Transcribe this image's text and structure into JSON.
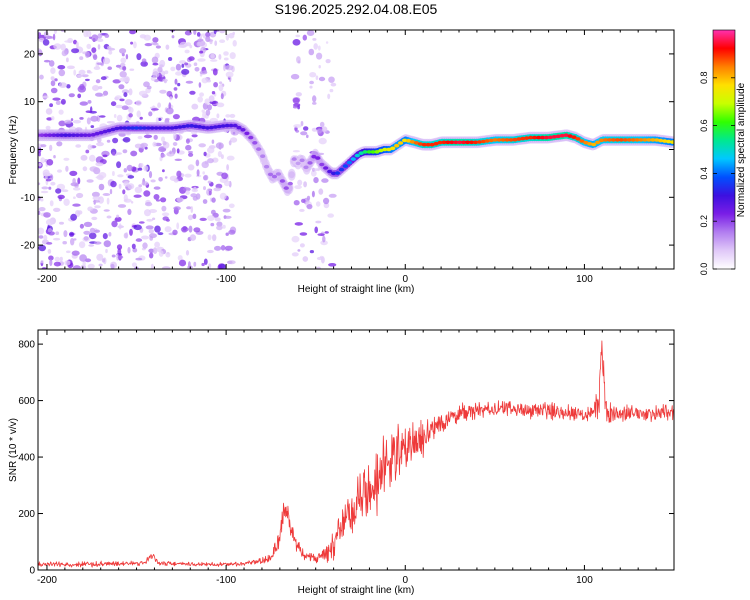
{
  "title": "S196.2025.292.04.08.E05",
  "chart_data": [
    {
      "type": "heatmap",
      "title": "S196.2025.292.04.08.E05",
      "xlabel": "Height of straight line (km)",
      "ylabel": "Frequency (Hz)",
      "xlim": [
        -205,
        150
      ],
      "ylim": [
        -25,
        25
      ],
      "xticks": [
        -200,
        -100,
        0,
        100
      ],
      "xticklabels": [
        "-200",
        "-100",
        "0",
        "100"
      ],
      "yticks": [
        -20,
        -10,
        0,
        10,
        20
      ],
      "yticklabels": [
        "-20",
        "-10",
        "0",
        "10",
        "20"
      ],
      "colorbar": {
        "label": "Normalized spectral amplitude",
        "range": [
          0,
          1
        ],
        "ticks": [
          0.0,
          0.2,
          0.4,
          0.6,
          0.8
        ],
        "ticklabels": [
          "0.0",
          "0.2",
          "0.4",
          "0.6",
          "0.8"
        ],
        "colormap": [
          "#ffffff",
          "#e0c8f8",
          "#b27ef0",
          "#7a1ee6",
          "#3c10e0",
          "#0050ff",
          "#00c8ff",
          "#00e890",
          "#30ff00",
          "#c8ff00",
          "#ffe000",
          "#ff8000",
          "#ff0000",
          "#ff30b0"
        ]
      },
      "ridge": {
        "x": [
          -205,
          -190,
          -175,
          -160,
          -150,
          -140,
          -130,
          -120,
          -110,
          -100,
          -95,
          -90,
          -85,
          -80,
          -77,
          -74,
          -71,
          -68,
          -65,
          -62,
          -60,
          -58,
          -55,
          -52,
          -50,
          -47,
          -44,
          -41,
          -38,
          -35,
          -32,
          -29,
          -26,
          -23,
          -20,
          -16,
          -12,
          -8,
          -4,
          0,
          5,
          10,
          15,
          20,
          30,
          40,
          50,
          60,
          70,
          80,
          90,
          95,
          100,
          105,
          110,
          120,
          130,
          140,
          150
        ],
        "freq": [
          3,
          3,
          3,
          4.5,
          4.5,
          4.5,
          4.5,
          5,
          4.5,
          5,
          5,
          4,
          2,
          -1,
          -4,
          -6,
          -5,
          -7,
          -9,
          -2,
          -3,
          -2,
          -4,
          -2,
          -1,
          -3,
          -4,
          -5,
          -5,
          -4,
          -3,
          -2,
          -1,
          -0.5,
          -0.5,
          -0.5,
          0,
          0,
          1,
          2,
          1.5,
          1,
          1,
          1.5,
          1.5,
          1.5,
          2,
          2,
          2.5,
          2.5,
          3,
          2.5,
          1.5,
          1,
          2,
          2,
          2,
          2,
          1.5
        ],
        "amplitude": [
          0.2,
          0.3,
          0.25,
          0.3,
          0.35,
          0.3,
          0.3,
          0.32,
          0.3,
          0.3,
          0.28,
          0.25,
          0.2,
          0.15,
          0.15,
          0.18,
          0.15,
          0.2,
          0.18,
          0.15,
          0.12,
          0.15,
          0.15,
          0.2,
          0.25,
          0.2,
          0.25,
          0.3,
          0.35,
          0.35,
          0.4,
          0.45,
          0.5,
          0.55,
          0.6,
          0.65,
          0.7,
          0.75,
          0.8,
          0.75,
          0.85,
          0.9,
          0.9,
          0.9,
          0.95,
          0.9,
          0.85,
          0.88,
          0.9,
          0.95,
          0.95,
          0.9,
          0.85,
          0.8,
          0.85,
          0.88,
          0.85,
          0.8,
          0.75
        ]
      },
      "noise_region_x": [
        -205,
        -95
      ]
    },
    {
      "type": "line",
      "xlabel": "Height of straight line (km)",
      "ylabel": "SNR (10 * v/v)",
      "xlim": [
        -205,
        150
      ],
      "ylim": [
        0,
        850
      ],
      "xticks": [
        -200,
        -100,
        0,
        100
      ],
      "xticklabels": [
        "-200",
        "-100",
        "0",
        "100"
      ],
      "yticks": [
        0,
        200,
        400,
        600,
        800
      ],
      "yticklabels": [
        "0",
        "200",
        "400",
        "600",
        "800"
      ],
      "color": "#ee3a3a",
      "series": [
        {
          "name": "SNR",
          "x": [
            -205,
            -180,
            -160,
            -145,
            -142,
            -138,
            -120,
            -100,
            -85,
            -75,
            -70,
            -67,
            -64,
            -60,
            -55,
            -50,
            -45,
            -40,
            -35,
            -30,
            -25,
            -20,
            -15,
            -10,
            -5,
            0,
            5,
            10,
            15,
            20,
            25,
            30,
            40,
            50,
            60,
            70,
            80,
            90,
            100,
            105,
            108,
            110,
            112,
            115,
            120,
            130,
            140,
            150
          ],
          "y": [
            20,
            20,
            22,
            25,
            60,
            25,
            20,
            20,
            25,
            40,
            120,
            230,
            150,
            80,
            50,
            40,
            60,
            100,
            150,
            200,
            250,
            300,
            320,
            380,
            400,
            430,
            450,
            470,
            500,
            520,
            540,
            555,
            565,
            570,
            570,
            565,
            565,
            560,
            555,
            560,
            600,
            780,
            560,
            555,
            555,
            555,
            555,
            560
          ]
        }
      ],
      "amplitude": [
        10,
        12,
        10,
        10,
        25,
        10,
        8,
        8,
        10,
        20,
        60,
        60,
        50,
        30,
        20,
        20,
        40,
        70,
        90,
        110,
        120,
        130,
        140,
        140,
        130,
        120,
        100,
        80,
        60,
        50,
        40,
        40,
        35,
        35,
        35,
        35,
        35,
        35,
        35,
        40,
        120,
        60,
        60,
        40,
        35,
        35,
        35,
        35
      ]
    }
  ]
}
